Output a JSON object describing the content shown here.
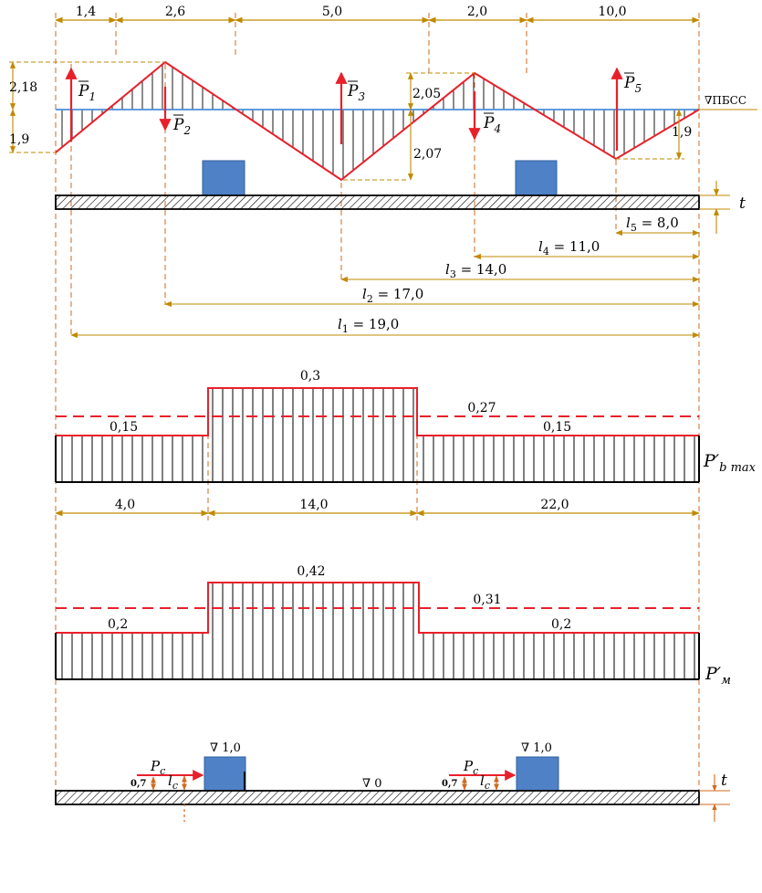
{
  "top_segments": [
    "1,4",
    "2,6",
    "5,0",
    "2,0",
    "10,0"
  ],
  "level_values": {
    "left_up": "2,18",
    "left_down": "1,9",
    "mid_up": "2,05",
    "mid_down": "2,07",
    "right_down": "1,9"
  },
  "water_level_label": "∇ПБСС",
  "forces": {
    "p1": "P",
    "p1_sub": "1",
    "p2": "P",
    "p2_sub": "2",
    "p3": "P",
    "p3_sub": "3",
    "p4": "P",
    "p4_sub": "4",
    "p5": "P",
    "p5_sub": "5"
  },
  "thickness_label": "t",
  "lengths": [
    {
      "sym": "l",
      "sub": "5",
      "value": " = 8,0"
    },
    {
      "sym": "l",
      "sub": "4",
      "value": " = 11,0"
    },
    {
      "sym": "l",
      "sub": "3",
      "value": " = 14,0"
    },
    {
      "sym": "l",
      "sub": "2",
      "value": " = 17,0"
    },
    {
      "sym": "l",
      "sub": "1",
      "value": " = 19,0"
    }
  ],
  "pb_diagram": {
    "value_left": "0,15",
    "value_mid": "0,3",
    "value_avg": "0,27",
    "value_right": "0,15",
    "label": "P′",
    "label_sub": "b max",
    "segments": [
      "4,0",
      "14,0",
      "22,0"
    ]
  },
  "pm_diagram": {
    "value_left": "0,2",
    "value_mid": "0,42",
    "value_avg": "0,31",
    "value_right": "0,2",
    "label": "P′",
    "label_sub": "м"
  },
  "bottom": {
    "elev_block_left": "∇ 1,0",
    "elev_block_right": "∇ 1,0",
    "elev_zero": "∇ 0",
    "pc": "P",
    "pc_sub": "c",
    "lc": "l",
    "lc_sub": "c",
    "offset": "0,7",
    "t": "t"
  },
  "colors": {
    "red": "#e8202a",
    "blue_line": "#4a90d9",
    "block": "#4f81c7",
    "dim": "#c08a00",
    "dim_bottom": "#d2691e"
  }
}
